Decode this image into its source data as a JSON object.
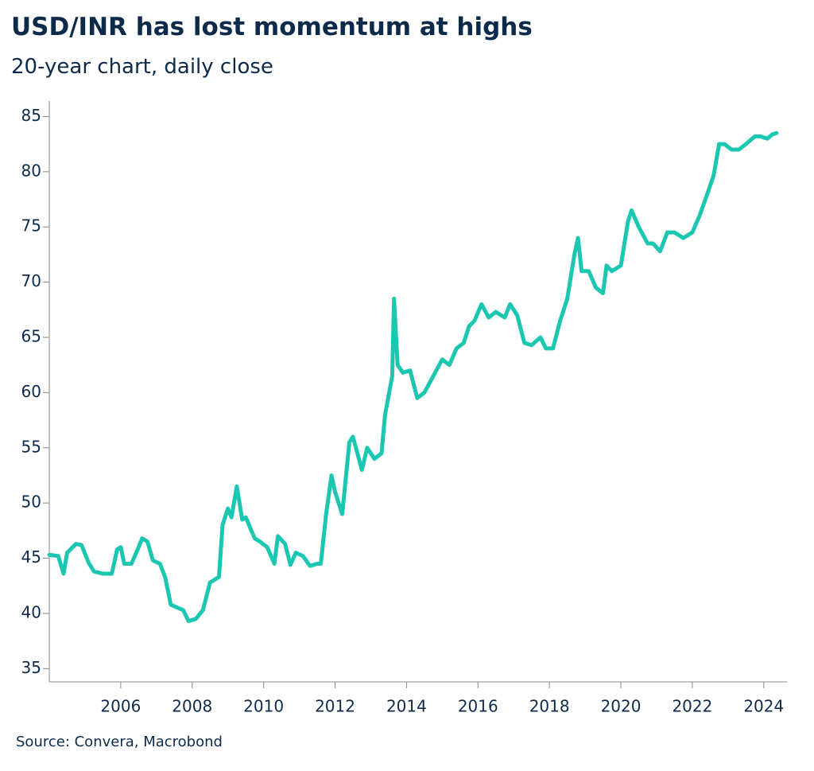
{
  "chart_data": {
    "type": "line",
    "title": "USD/INR has lost momentum at highs",
    "subtitle": "20-year chart, daily close",
    "source": "Source: Convera, Macrobond",
    "xlim": [
      2004.0,
      2024.65
    ],
    "xticks": [
      2006,
      2008,
      2010,
      2012,
      2014,
      2016,
      2018,
      2020,
      2022,
      2024
    ],
    "ylim": [
      33.8,
      86.4
    ],
    "yticks": [
      35,
      40,
      45,
      50,
      55,
      60,
      65,
      70,
      75,
      80,
      85
    ],
    "grid": false,
    "series": [
      {
        "name": "USD/INR",
        "color": "#1cc7b1",
        "x": [
          2004.0,
          2004.25,
          2004.4,
          2004.5,
          2004.75,
          2004.9,
          2005.1,
          2005.25,
          2005.5,
          2005.75,
          2005.9,
          2006.0,
          2006.1,
          2006.3,
          2006.5,
          2006.6,
          2006.75,
          2006.9,
          2007.1,
          2007.25,
          2007.4,
          2007.6,
          2007.75,
          2007.9,
          2008.1,
          2008.3,
          2008.5,
          2008.75,
          2008.85,
          2009.0,
          2009.1,
          2009.25,
          2009.4,
          2009.5,
          2009.75,
          2009.9,
          2010.1,
          2010.3,
          2010.4,
          2010.6,
          2010.75,
          2010.9,
          2011.1,
          2011.3,
          2011.5,
          2011.6,
          2011.75,
          2011.9,
          2012.0,
          2012.2,
          2012.4,
          2012.5,
          2012.75,
          2012.9,
          2013.1,
          2013.3,
          2013.4,
          2013.6,
          2013.65,
          2013.75,
          2013.9,
          2014.1,
          2014.3,
          2014.5,
          2014.75,
          2015.0,
          2015.2,
          2015.4,
          2015.6,
          2015.75,
          2015.9,
          2016.1,
          2016.3,
          2016.5,
          2016.75,
          2016.9,
          2017.1,
          2017.3,
          2017.5,
          2017.75,
          2017.9,
          2018.1,
          2018.3,
          2018.5,
          2018.7,
          2018.8,
          2018.9,
          2019.1,
          2019.3,
          2019.5,
          2019.6,
          2019.75,
          2020.0,
          2020.2,
          2020.3,
          2020.5,
          2020.75,
          2020.9,
          2021.1,
          2021.3,
          2021.5,
          2021.75,
          2022.0,
          2022.2,
          2022.4,
          2022.6,
          2022.75,
          2022.9,
          2023.1,
          2023.3,
          2023.5,
          2023.75,
          2023.9,
          2024.1,
          2024.25,
          2024.36
        ],
        "values": [
          45.3,
          45.2,
          43.6,
          45.5,
          46.3,
          46.2,
          44.6,
          43.8,
          43.6,
          43.6,
          45.8,
          46.0,
          44.5,
          44.5,
          46.0,
          46.8,
          46.5,
          44.8,
          44.5,
          43.2,
          40.8,
          40.5,
          40.3,
          39.3,
          39.5,
          40.3,
          42.8,
          43.3,
          48.0,
          49.5,
          48.7,
          51.5,
          48.5,
          48.7,
          46.8,
          46.5,
          46.0,
          44.5,
          47.0,
          46.3,
          44.4,
          45.5,
          45.2,
          44.3,
          44.5,
          44.5,
          49.0,
          52.5,
          51.0,
          49.0,
          55.5,
          56.0,
          53.0,
          55.0,
          54.0,
          54.5,
          58.0,
          61.5,
          68.5,
          62.5,
          61.8,
          62.0,
          59.5,
          60.0,
          61.5,
          63.0,
          62.5,
          64.0,
          64.5,
          66.0,
          66.5,
          68.0,
          66.8,
          67.3,
          66.8,
          68.0,
          67.0,
          64.5,
          64.3,
          65.0,
          64.0,
          64.0,
          66.5,
          68.5,
          72.5,
          74.0,
          71.0,
          71.0,
          69.5,
          69.0,
          71.5,
          71.0,
          71.5,
          75.5,
          76.5,
          75.0,
          73.5,
          73.5,
          72.8,
          74.5,
          74.5,
          74.0,
          74.5,
          76.0,
          77.8,
          79.7,
          82.5,
          82.5,
          82.0,
          82.0,
          82.5,
          83.2,
          83.2,
          83.0,
          83.4,
          83.5
        ]
      }
    ]
  }
}
